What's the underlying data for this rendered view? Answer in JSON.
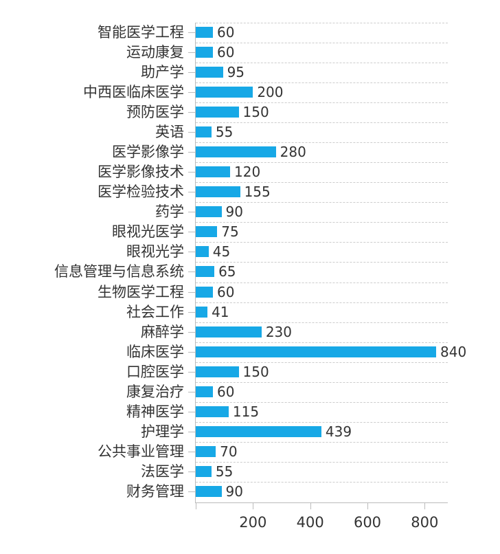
{
  "chart_data": {
    "type": "bar",
    "orientation": "horizontal",
    "title": "",
    "xlabel": "",
    "ylabel": "",
    "xlim": [
      0,
      880
    ],
    "grid": "horizontal dashed",
    "legend": null,
    "bar_color": "#17a8e6",
    "x_ticks": [
      0,
      200,
      400,
      600,
      800
    ],
    "x_tick_labels": [
      "",
      "200",
      "400",
      "600",
      "800"
    ],
    "categories": [
      "智能医学工程",
      "运动康复",
      "助产学",
      "中西医临床医学",
      "预防医学",
      "英语",
      "医学影像学",
      "医学影像技术",
      "医学检验技术",
      "药学",
      "眼视光医学",
      "眼视光学",
      "信息管理与信息系统",
      "生物医学工程",
      "社会工作",
      "麻醉学",
      "临床医学",
      "口腔医学",
      "康复治疗",
      "精神医学",
      "护理学",
      "公共事业管理",
      "法医学",
      "财务管理"
    ],
    "values": [
      60,
      60,
      95,
      200,
      150,
      55,
      280,
      120,
      155,
      90,
      75,
      45,
      65,
      60,
      41,
      230,
      840,
      150,
      60,
      115,
      439,
      70,
      55,
      90
    ]
  }
}
